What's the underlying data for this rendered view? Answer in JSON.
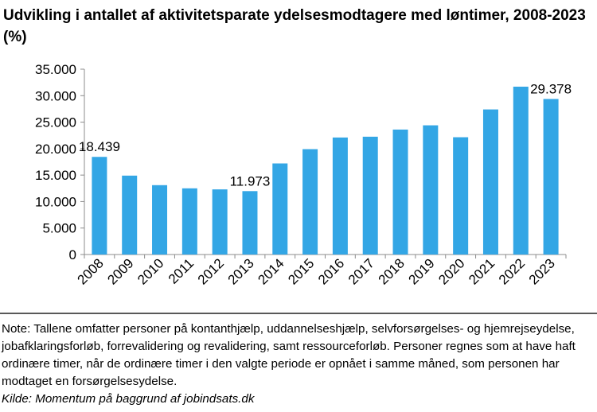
{
  "title": "Udvikling i antallet af aktivitetsparate ydelsesmodtagere med løntimer, 2008-2023 (%)",
  "chart_data": {
    "type": "bar",
    "title": "Udvikling i antallet af aktivitetsparate ydelsesmodtagere med løntimer, 2008-2023 (%)",
    "categories": [
      "2008",
      "2009",
      "2010",
      "2011",
      "2012",
      "2013",
      "2014",
      "2015",
      "2016",
      "2017",
      "2018",
      "2019",
      "2020",
      "2021",
      "2022",
      "2023"
    ],
    "values": [
      18439,
      14900,
      13100,
      12500,
      12300,
      11973,
      17200,
      19900,
      22100,
      22250,
      23600,
      24400,
      22150,
      27400,
      31700,
      29378
    ],
    "data_labels": {
      "2008": "18.439",
      "2013": "11.973",
      "2023": "29.378"
    },
    "ylim": [
      0,
      35000
    ],
    "yticks": [
      0,
      5000,
      10000,
      15000,
      20000,
      25000,
      30000,
      35000
    ],
    "ytick_labels": [
      "0",
      "5.000",
      "10.000",
      "15.000",
      "20.000",
      "25.000",
      "30.000",
      "35.000"
    ],
    "grid": false,
    "legend": "none",
    "bar_color": "#33a6e5",
    "axis_color": "#8c8c8c"
  },
  "note": {
    "text": "Note: Tallene omfatter personer på kontanthjælp, uddannelseshjælp, selvforsørgelses- og hjemrejseydelse, jobafklaringsforløb, forrevalidering og revalidering, samt ressourceforløb. Personer regnes som at have haft ordinære timer, når de ordinære timer i den valgte periode er opnået i samme måned, som personen har modtaget en forsørgelsesydelse.",
    "source": "Kilde: Momentum på baggrund af jobindsats.dk"
  }
}
